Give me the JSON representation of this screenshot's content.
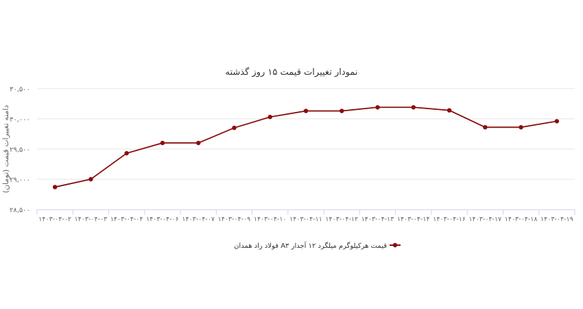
{
  "chart_data": {
    "type": "line",
    "title": "نمودار تغییرات قیمت ۱۵ روز گذشته",
    "ylabel": "دامنه تغییرات قیمت (تومان)",
    "xlabel": "",
    "ylim": [
      28500,
      30500
    ],
    "yticks": [
      28500,
      29000,
      29500,
      30000,
      30500
    ],
    "ytick_labels": [
      "۲۸,۵۰۰",
      "۲۹,۰۰۰",
      "۲۹,۵۰۰",
      "۳۰,۰۰۰",
      "۳۰,۵۰۰"
    ],
    "grid": true,
    "legend_position": "bottom-center",
    "categories": [
      "۱۴۰۳-۰۴-۰۲",
      "۱۴۰۳-۰۴-۰۳",
      "۱۴۰۳-۰۴-۰۴",
      "۱۴۰۳-۰۴-۰۶",
      "۱۴۰۳-۰۴-۰۷",
      "۱۴۰۳-۰۴-۰۹",
      "۱۴۰۳-۰۴-۱۰",
      "۱۴۰۳-۰۴-۱۱",
      "۱۴۰۳-۰۴-۱۲",
      "۱۴۰۳-۰۴-۱۳",
      "۱۴۰۳-۰۴-۱۴",
      "۱۴۰۳-۰۴-۱۶",
      "۱۴۰۳-۰۴-۱۷",
      "۱۴۰۳-۰۴-۱۸",
      "۱۴۰۳-۰۴-۱۹"
    ],
    "series": [
      {
        "name": "فولاد راد همدان A۳ قیمت هرکیلوگرم میلگرد ۱۲ آجدار",
        "color": "#8b0d0d",
        "values": [
          28870,
          29000,
          29430,
          29600,
          29600,
          29850,
          30030,
          30130,
          30130,
          30190,
          30190,
          30140,
          29860,
          29860,
          29960
        ]
      }
    ]
  }
}
